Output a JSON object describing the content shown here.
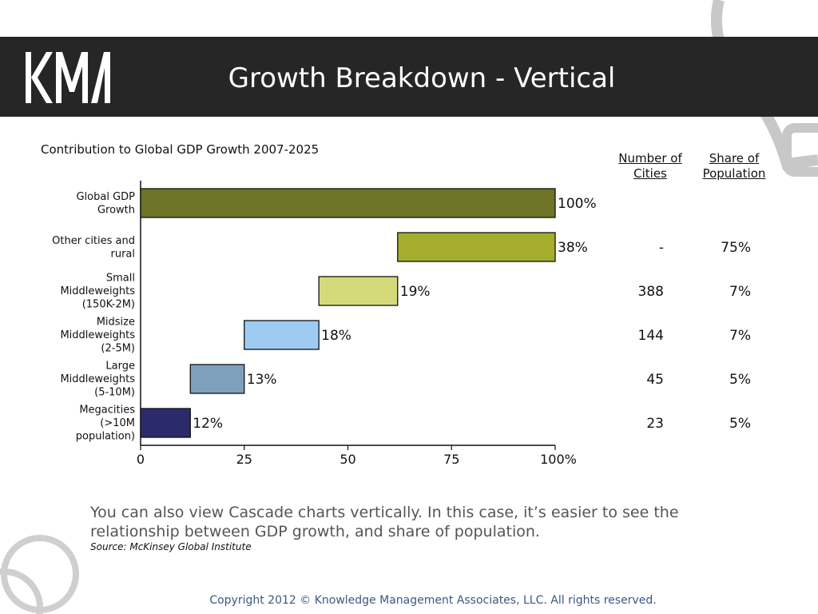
{
  "slide": {
    "title": "Growth Breakdown - Vertical",
    "logo_text": "KMA",
    "caption": "You can also view Cascade charts vertically.  In this case, it’s easier to see the relationship between GDP growth, and share of population.",
    "source": "Source: McKinsey Global Institute",
    "copyright": "Copyright 2012 © Knowledge Management Associates, LLC.  All rights reserved."
  },
  "table": {
    "col_cities": "Number of Cities",
    "col_share": "Share of Population",
    "rows": [
      {
        "cities": "",
        "share": ""
      },
      {
        "cities": "-",
        "share": "75%"
      },
      {
        "cities": "388",
        "share": "7%"
      },
      {
        "cities": "144",
        "share": "7%"
      },
      {
        "cities": "45",
        "share": "5%"
      },
      {
        "cities": "23",
        "share": "5%"
      }
    ]
  },
  "chart_data": {
    "type": "bar",
    "title": "Contribution to Global GDP Growth 2007-2025",
    "xlim": [
      0,
      100
    ],
    "x_ticks": [
      "0",
      "25",
      "50",
      "75",
      "100%"
    ],
    "categories": [
      [
        "Global GDP",
        "Growth"
      ],
      [
        "Other cities and",
        "rural"
      ],
      [
        "Small",
        "Middleweights",
        "(150K-2M)"
      ],
      [
        "Midsize",
        "Middleweights",
        "(2-5M)"
      ],
      [
        "Large",
        "Middleweights",
        "(5-10M)"
      ],
      [
        "Megacities",
        "(>10M",
        "population)"
      ]
    ],
    "bars": [
      {
        "start": 0,
        "value": 100,
        "label": "100%",
        "color": "#6f7327"
      },
      {
        "start": 62,
        "value": 38,
        "label": "38%",
        "color": "#a5ad2e"
      },
      {
        "start": 43,
        "value": 19,
        "label": "19%",
        "color": "#d4da7a"
      },
      {
        "start": 25,
        "value": 18,
        "label": "18%",
        "color": "#9dcbf1"
      },
      {
        "start": 12,
        "value": 13,
        "label": "13%",
        "color": "#7fa0bd"
      },
      {
        "start": 0,
        "value": 12,
        "label": "12%",
        "color": "#2b2a6b"
      }
    ]
  }
}
